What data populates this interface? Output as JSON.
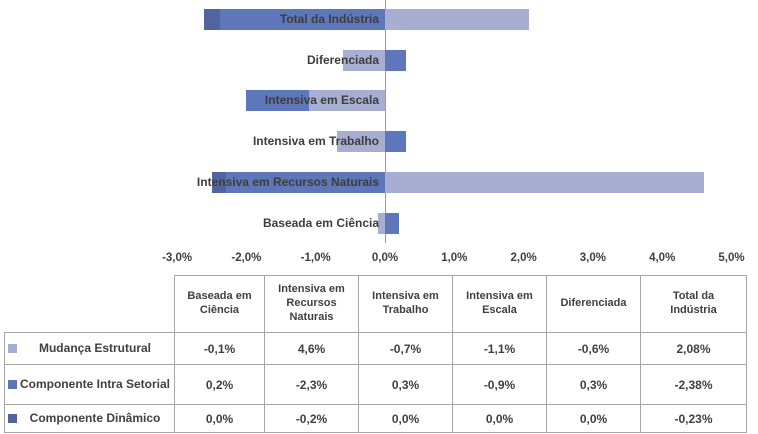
{
  "chart_data": {
    "type": "bar",
    "orientation": "horizontal",
    "stacked": true,
    "title": "",
    "xlabel": "",
    "ylabel": "",
    "xlim": [
      -3,
      5
    ],
    "grid": false,
    "categories": [
      "Total da Indústria",
      "Diferenciada",
      "Intensiva em Escala",
      "Intensiva em Trabalho",
      "Intensiva em Recursos Naturais",
      "Baseada em Ciência"
    ],
    "series": [
      {
        "name": "Mudança Estrutural",
        "color": "#A8ADD2",
        "values": [
          2.08,
          -0.6,
          -1.1,
          -0.7,
          4.6,
          -0.1
        ]
      },
      {
        "name": "Componente Intra Setorial",
        "color": "#5E76BA",
        "values": [
          -2.38,
          0.3,
          -0.9,
          0.3,
          -2.3,
          0.2
        ]
      },
      {
        "name": "Componente Dinâmico",
        "color": "#53639F",
        "values": [
          -0.23,
          0.0,
          0.0,
          0.0,
          -0.2,
          0.0
        ]
      }
    ],
    "x_ticks": [
      {
        "value": -3,
        "label": "-3,0%"
      },
      {
        "value": -2,
        "label": "-2,0%"
      },
      {
        "value": -1,
        "label": "-1,0%"
      },
      {
        "value": 0,
        "label": "0,0%"
      },
      {
        "value": 1,
        "label": "1,0%"
      },
      {
        "value": 2,
        "label": "2,0%"
      },
      {
        "value": 3,
        "label": "3,0%"
      },
      {
        "value": 4,
        "label": "4,0%"
      },
      {
        "value": 5,
        "label": "5,0%"
      }
    ]
  },
  "table": {
    "columns": [
      "Baseada em\nCiência",
      "Intensiva em\nRecursos\nNaturais",
      "Intensiva em\nTrabalho",
      "Intensiva em\nEscala",
      "Diferenciada",
      "Total da\nIndústria"
    ],
    "rows": [
      {
        "label": "Mudança Estrutural",
        "swatch": "#A8ADD2",
        "values": [
          "-0,1%",
          "4,6%",
          "-0,7%",
          "-1,1%",
          "-0,6%",
          "2,08%"
        ]
      },
      {
        "label": "Componente Intra Setorial",
        "swatch": "#5E76BA",
        "values": [
          "0,2%",
          "-2,3%",
          "0,3%",
          "-0,9%",
          "0,3%",
          "-2,38%"
        ]
      },
      {
        "label": "Componente Dinâmico",
        "swatch": "#53639F",
        "values": [
          "0,0%",
          "-0,2%",
          "0,0%",
          "0,0%",
          "0,0%",
          "-0,23%"
        ]
      }
    ]
  },
  "colors": {
    "series_light": "#A8ADD2",
    "series_medium": "#5E76BA",
    "series_dark": "#53639F",
    "axis_line": "#9b9b9b",
    "table_border": "#a6a6a6",
    "text": "#404040"
  }
}
